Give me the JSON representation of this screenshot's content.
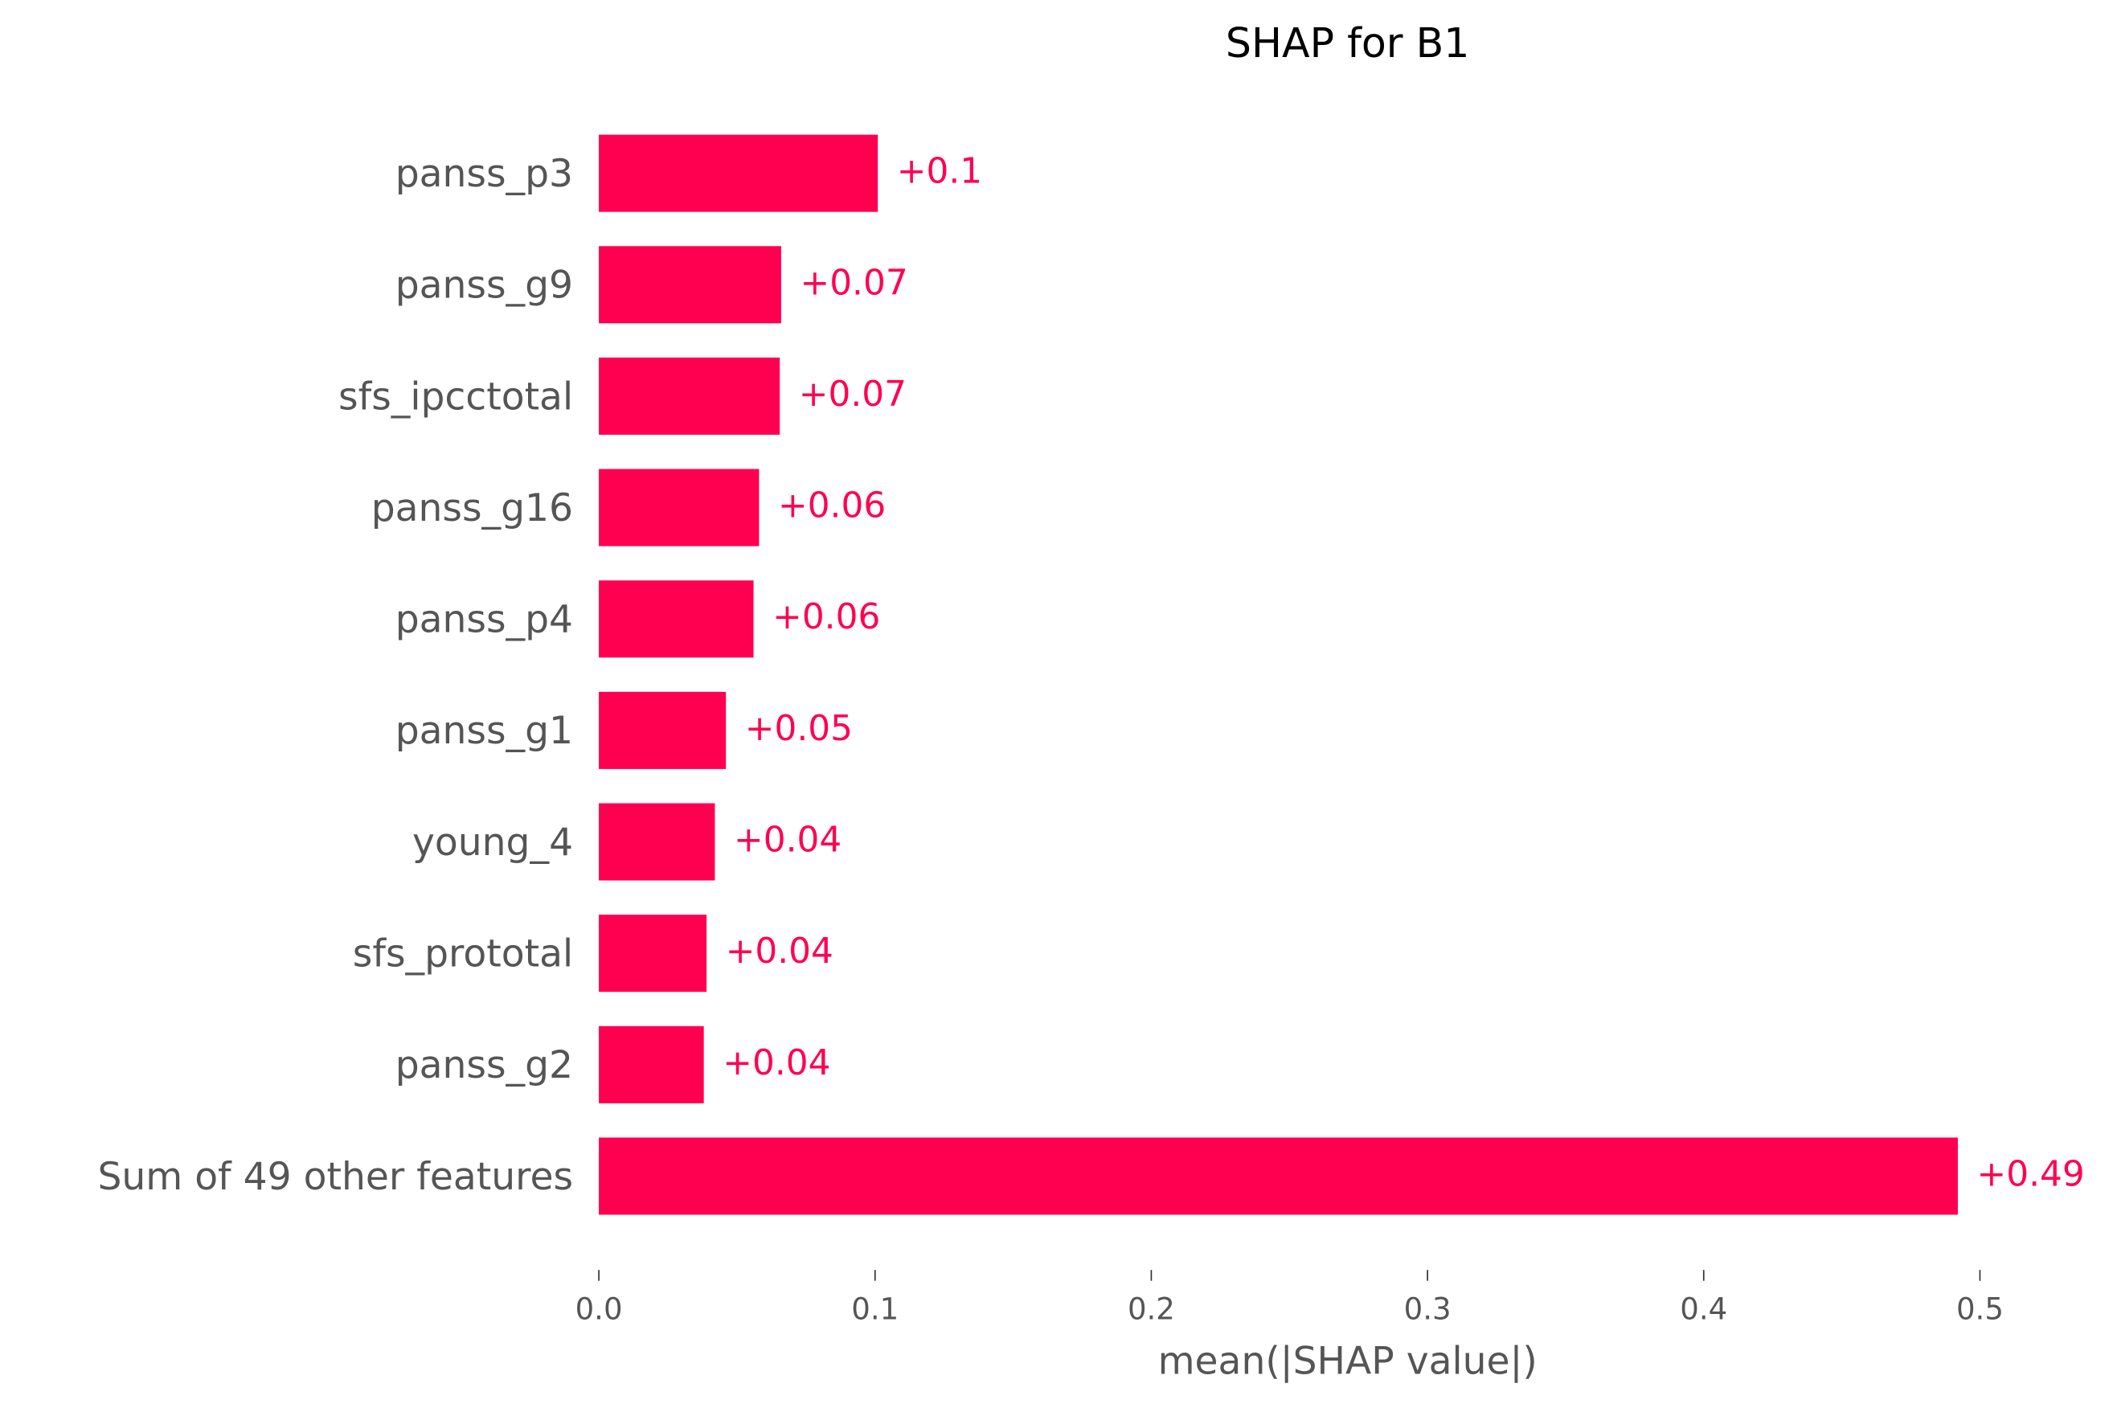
{
  "chart_data": {
    "type": "bar",
    "orientation": "horizontal",
    "title": "SHAP for B1",
    "x_label": "mean(|SHAP value|)",
    "categories": [
      "panss_p3",
      "panss_g9",
      "sfs_ipcctotal",
      "panss_g16",
      "panss_p4",
      "panss_g1",
      "young_4",
      "sfs_prototal",
      "panss_g2",
      "Sum of 49 other features"
    ],
    "values": [
      0.101,
      0.066,
      0.0655,
      0.058,
      0.056,
      0.046,
      0.042,
      0.039,
      0.038,
      0.492
    ],
    "value_labels": [
      "+0.1",
      "+0.07",
      "+0.07",
      "+0.06",
      "+0.06",
      "+0.05",
      "+0.04",
      "+0.04",
      "+0.04",
      "+0.49"
    ],
    "color": "#ff0051",
    "xlim": [
      0,
      0.5
    ],
    "xticks": [
      {
        "value": 0,
        "label": "0.0"
      },
      0.1,
      0.2,
      0.3,
      0.4,
      0.5
    ],
    "grid": false
  }
}
